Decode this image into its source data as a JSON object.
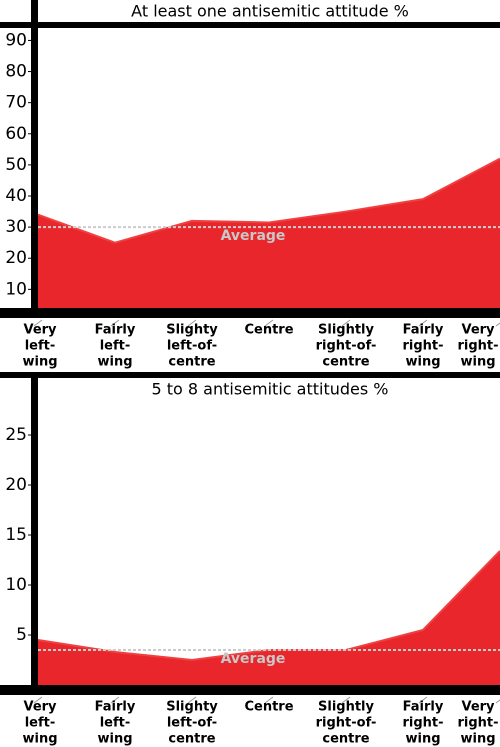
{
  "chart_data": [
    {
      "type": "area",
      "title": "At least one antisemitic attitude %",
      "categories": [
        [
          "Very",
          "left-",
          "wing"
        ],
        [
          "Fairly",
          "left-",
          "wing"
        ],
        [
          "Slighty",
          "left-of-",
          "centre"
        ],
        [
          "Centre"
        ],
        [
          "Slightly",
          "right-of-",
          "centre"
        ],
        [
          "Fairly",
          "right-",
          "wing"
        ],
        [
          "Very",
          "right-",
          "wing"
        ]
      ],
      "values": [
        34,
        25,
        32,
        31.5,
        35,
        39,
        52
      ],
      "color": "#e8262b",
      "ylim": [
        4,
        94
      ],
      "yticks": [
        10,
        20,
        30,
        40,
        50,
        60,
        70,
        80,
        90
      ],
      "annotations": [
        {
          "text": "Average",
          "value": 30
        }
      ]
    },
    {
      "type": "area",
      "title": "5 to 8 antisemitic attitudes %",
      "categories": [
        [
          "Very",
          "left-",
          "wing"
        ],
        [
          "Fairly",
          "left-",
          "wing"
        ],
        [
          "Slighty",
          "left-of-",
          "centre"
        ],
        [
          "Centre"
        ],
        [
          "Slightly",
          "right-of-",
          "centre"
        ],
        [
          "Fairly",
          "right-",
          "wing"
        ],
        [
          "Very",
          "right-",
          "wing"
        ]
      ],
      "values": [
        4.5,
        3.3,
        2.5,
        3.5,
        3.5,
        5.5,
        13.4
      ],
      "color": "#e8262b",
      "ylim": [
        0,
        28.5
      ],
      "yticks": [
        5,
        10,
        15,
        20,
        25
      ],
      "annotations": [
        {
          "text": "Average",
          "value": 3.5
        }
      ]
    }
  ]
}
